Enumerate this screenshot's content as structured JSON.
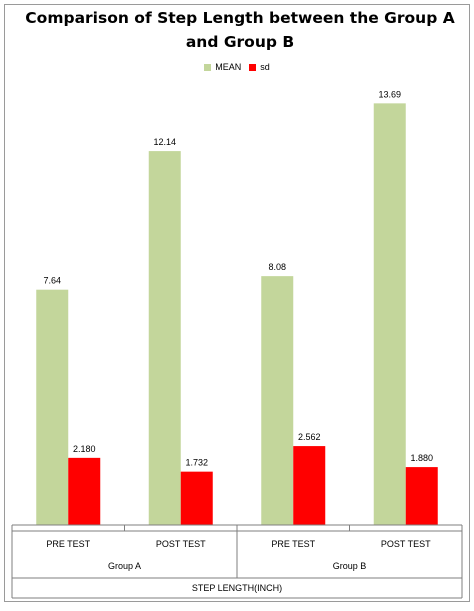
{
  "chart_data": {
    "type": "bar",
    "title": "Comparison  of Step Length between the Group A and Group B",
    "categories": [
      "PRE TEST",
      "POST TEST",
      "PRE TEST",
      "POST TEST"
    ],
    "groups": [
      "Group A",
      "Group B"
    ],
    "axis_title": "STEP LENGTH(INCH)",
    "series": [
      {
        "name": "MEAN",
        "values": [
          7.64,
          12.14,
          8.08,
          13.69
        ],
        "labels": [
          "7.64",
          "12.14",
          "8.08",
          "13.69"
        ],
        "color": "#c3d69b"
      },
      {
        "name": "sd",
        "values": [
          2.18,
          1.732,
          2.562,
          1.88
        ],
        "labels": [
          "2.180",
          "1.732",
          "2.562",
          "1.880"
        ],
        "color": "#ff0000"
      }
    ],
    "ylim": [
      0,
      15
    ],
    "legend_position": "top"
  }
}
